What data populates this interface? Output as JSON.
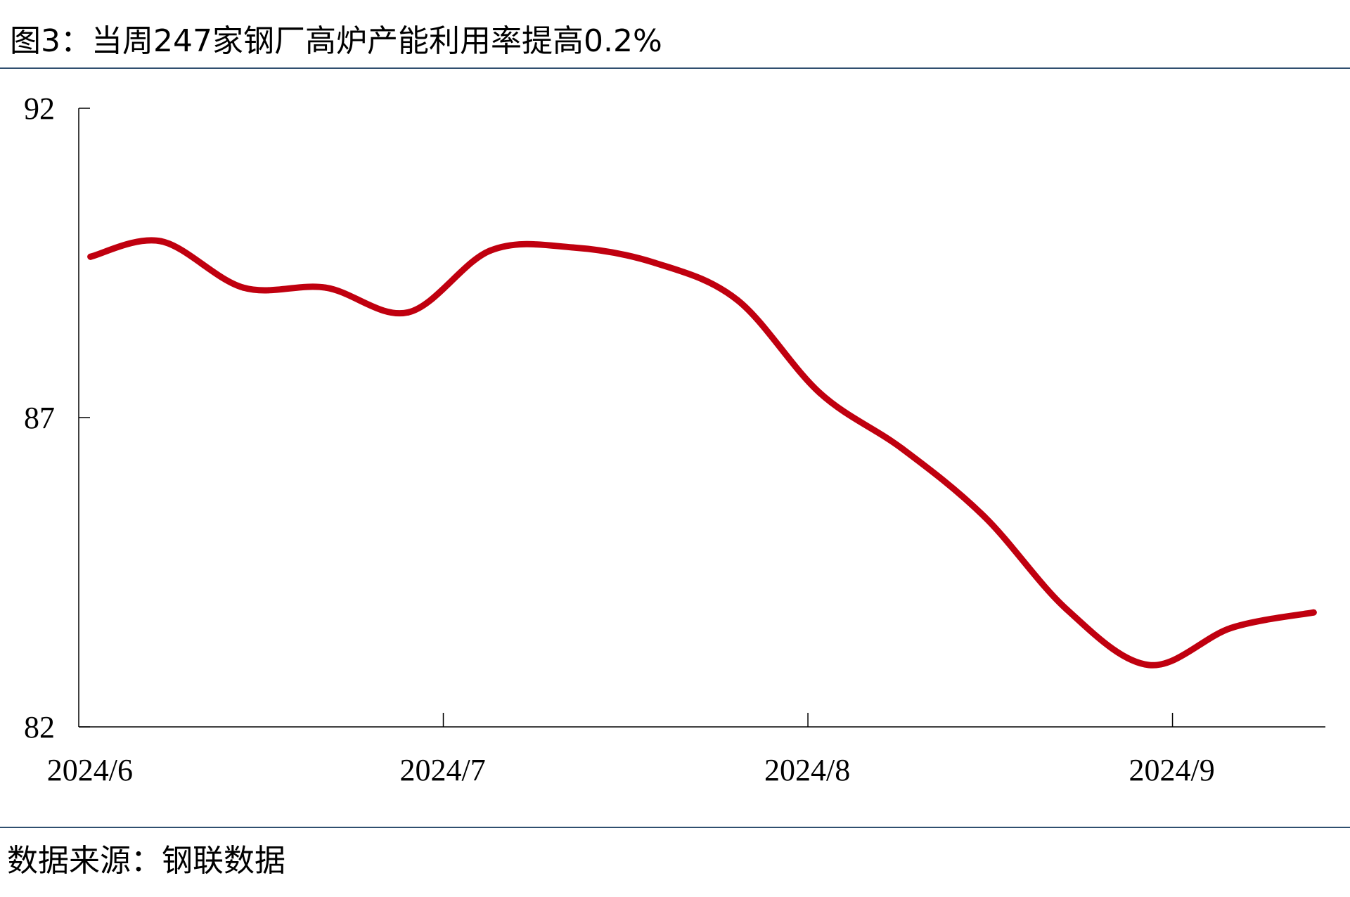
{
  "title": "图3：当周247家钢厂高炉产能利用率提高0.2%",
  "source": "数据来源：钢联数据",
  "colors": {
    "series": "#c0000f",
    "axis": "#000000",
    "rule": "#2f4f6f"
  },
  "chart_data": {
    "type": "line",
    "title": "图3：当周247家钢厂高炉产能利用率提高0.2%",
    "xlabel": "",
    "ylabel": "",
    "ylim": [
      82,
      92
    ],
    "yticks": [
      92,
      87,
      82
    ],
    "xticks": [
      "2024/6",
      "2024/7",
      "2024/8",
      "2024/9"
    ],
    "grid": false,
    "series": [
      {
        "x": [
          "2024-06-01",
          "2024-06-07",
          "2024-06-14",
          "2024-06-21",
          "2024-06-28",
          "2024-07-05",
          "2024-07-12",
          "2024-07-19",
          "2024-07-26",
          "2024-08-02",
          "2024-08-09",
          "2024-08-16",
          "2024-08-23",
          "2024-08-30",
          "2024-09-06",
          "2024-09-13"
        ],
        "values": [
          89.6,
          89.85,
          89.1,
          89.1,
          88.7,
          89.7,
          89.75,
          89.5,
          88.9,
          87.4,
          86.5,
          85.4,
          83.9,
          83.0,
          83.6,
          83.85
        ]
      }
    ]
  }
}
